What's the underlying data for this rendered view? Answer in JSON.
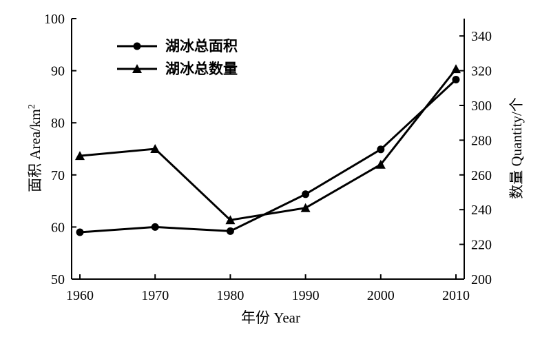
{
  "chart_data": {
    "type": "line",
    "title": "",
    "x": [
      1960,
      1970,
      1980,
      1990,
      2000,
      2010
    ],
    "xlabel": "年份 Year",
    "xlim": [
      1960,
      2010
    ],
    "xticks": [
      "1960",
      "1970",
      "1980",
      "1990",
      "2000",
      "2010"
    ],
    "y_left": {
      "label": "面积 Area/km",
      "label_superscript": "2",
      "lim": [
        50,
        100
      ],
      "ticks": [
        "50",
        "60",
        "70",
        "80",
        "90",
        "100"
      ]
    },
    "y_right": {
      "label": "数量 Quantity/个",
      "lim": [
        200,
        350
      ],
      "ticks": [
        "200",
        "220",
        "240",
        "260",
        "280",
        "300",
        "320",
        "340"
      ]
    },
    "series": [
      {
        "name": "湖冰总面积",
        "axis": "left",
        "marker": "circle",
        "values": [
          59.0,
          60.0,
          59.2,
          66.3,
          74.9,
          88.3
        ]
      },
      {
        "name": "湖冰总数量",
        "axis": "right",
        "marker": "triangle",
        "values": [
          271,
          275,
          234,
          241,
          266,
          321
        ]
      }
    ],
    "legend_position": "top-left",
    "grid": false
  }
}
